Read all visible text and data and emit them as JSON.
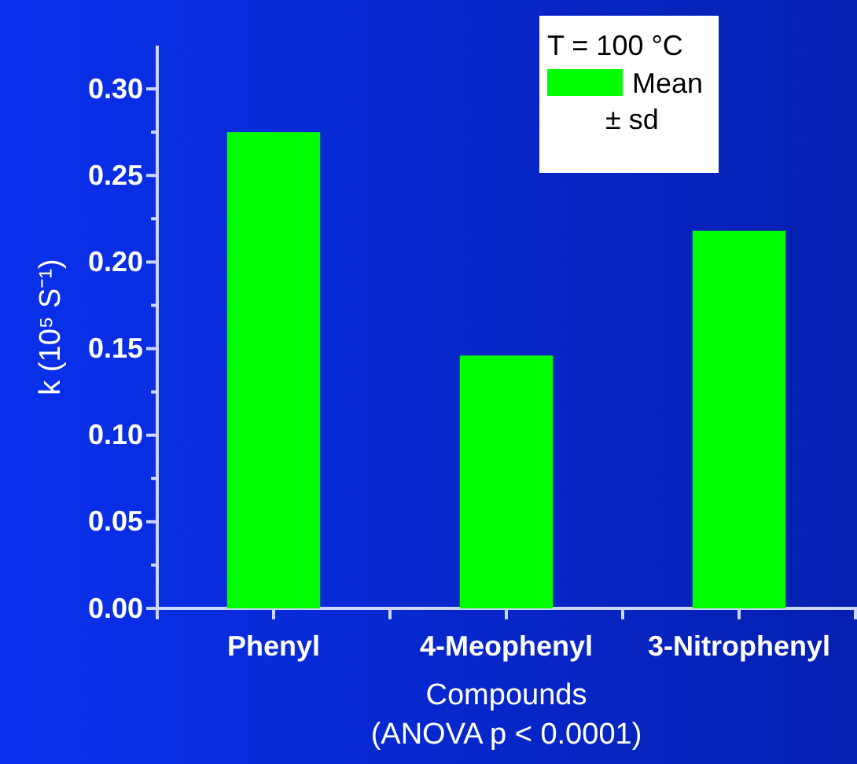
{
  "chart_data": {
    "type": "bar",
    "categories": [
      "Phenyl",
      "4-Meophenyl",
      "3-Nitrophenyl"
    ],
    "series": [
      {
        "name": "Mean",
        "color": "#00ff00",
        "values": [
          0.275,
          0.146,
          0.218
        ]
      }
    ],
    "ylabel": "k (10⁵ S⁻¹)",
    "xlabel": "Compounds\n(ANOVA p < 0.0001)",
    "legend_title": "T = 100 °C",
    "annotations": [
      "± sd"
    ],
    "legend": "top right",
    "ylim": [
      0,
      0.325
    ],
    "yticks": [
      {
        "value": 0,
        "label": "0.00"
      },
      {
        "value": 0.025,
        "label": null
      },
      {
        "value": 0.05,
        "label": "0.05"
      },
      {
        "value": 0.075,
        "label": null
      },
      {
        "value": 0.1,
        "label": "0.10"
      },
      {
        "value": 0.125,
        "label": null
      },
      {
        "value": 0.15,
        "label": "0.15"
      },
      {
        "value": 0.175,
        "label": null
      },
      {
        "value": 0.2,
        "label": "0.20"
      },
      {
        "value": 0.225,
        "label": null
      },
      {
        "value": 0.25,
        "label": "0.25"
      },
      {
        "value": 0.275,
        "label": null
      },
      {
        "value": 0.3,
        "label": "0.30"
      }
    ]
  }
}
